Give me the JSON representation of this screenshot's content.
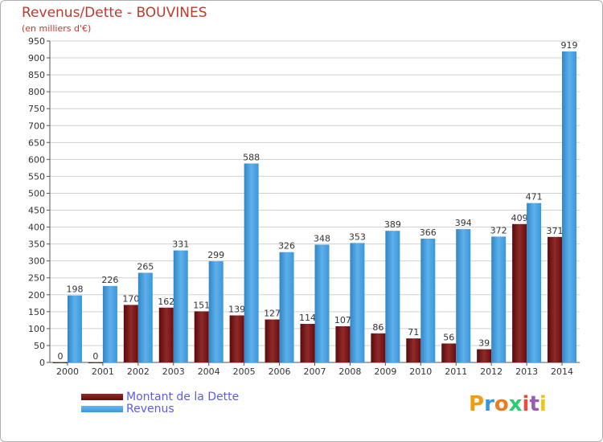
{
  "title": "Revenus/Dette - BOUVINES",
  "subtitle": "(en milliers d'€)",
  "colors": {
    "dette": "#7a1212",
    "revenus": "#3a97dc",
    "title": "#c0392b",
    "legend_text": "#5b5be6",
    "grid": "#cccccc"
  },
  "legend": [
    {
      "label": "Montant de la Dette",
      "color": "#6a0c0c"
    },
    {
      "label": "Revenus",
      "color": "#3a97dc"
    }
  ],
  "logo": {
    "letters": [
      "P",
      "r",
      "o",
      "x",
      "i",
      "t",
      "i"
    ],
    "colors": [
      "#f39c12",
      "#3498db",
      "#e67e22",
      "#2ecc71",
      "#e74c3c",
      "#9b59b6",
      "#f1c40f"
    ]
  },
  "chart_data": {
    "type": "bar",
    "title": "Revenus/Dette - BOUVINES",
    "ylabel": "(en milliers d'€)",
    "ylim": [
      0,
      950
    ],
    "yticks": [
      0,
      50,
      100,
      150,
      200,
      250,
      300,
      350,
      400,
      450,
      500,
      550,
      600,
      650,
      700,
      750,
      800,
      850,
      900,
      950
    ],
    "categories": [
      "2000",
      "2001",
      "2002",
      "2003",
      "2004",
      "2005",
      "2006",
      "2007",
      "2008",
      "2009",
      "2010",
      "2011",
      "2012",
      "2013",
      "2014"
    ],
    "series": [
      {
        "name": "Montant de la Dette",
        "values": [
          0,
          0,
          170,
          162,
          151,
          139,
          127,
          114,
          107,
          86,
          71,
          56,
          39,
          409,
          371
        ]
      },
      {
        "name": "Revenus",
        "values": [
          198,
          226,
          265,
          331,
          299,
          588,
          326,
          348,
          353,
          389,
          366,
          394,
          372,
          471,
          919
        ]
      }
    ]
  }
}
